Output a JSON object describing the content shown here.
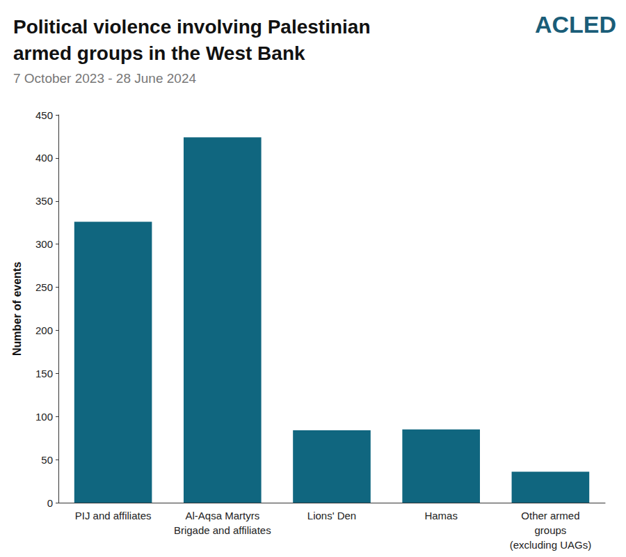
{
  "chart_data": {
    "type": "bar",
    "title": "Political violence involving Palestinian\narmed groups in the West Bank",
    "subtitle": "7 October 2023 - 28 June 2024",
    "y_label": "Number of events",
    "annotations": [
      "ACLED"
    ],
    "categories": [
      "PIJ and affiliates",
      "Al-Aqsa Martyrs\nBrigade and affiliates",
      "Lions' Den",
      "Hamas",
      "Other armed\ngroups\n(excluding UAGs)"
    ],
    "values": [
      326,
      424,
      84,
      85,
      36
    ],
    "color": "#10667f",
    "ylim": [
      0,
      450
    ],
    "yticks": [
      0,
      50,
      100,
      150,
      200,
      250,
      300,
      350,
      400,
      450
    ],
    "grid": false
  }
}
